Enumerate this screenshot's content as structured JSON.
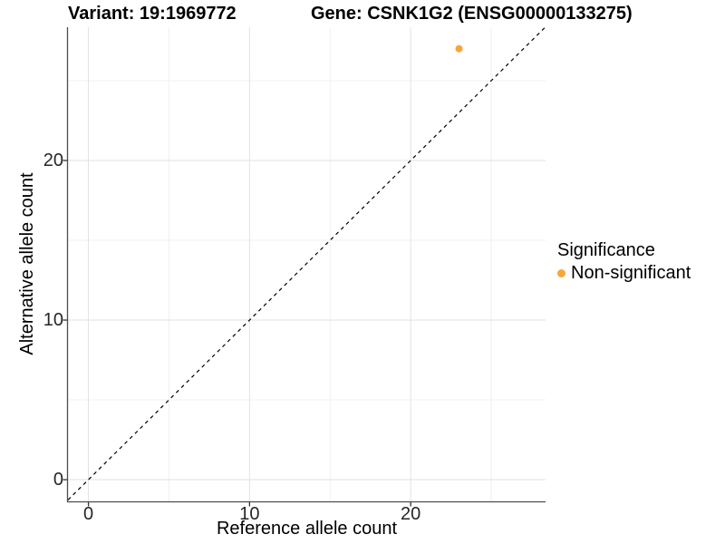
{
  "chart_data": {
    "type": "scatter",
    "title_left": "Variant: 19:1969772",
    "title_right": "Gene: CSNK1G2 (ENSG00000133275)",
    "xlabel": "Reference allele count",
    "ylabel": "Alternative allele count",
    "xlim": [
      -1.27,
      28.37
    ],
    "ylim": [
      -1.36,
      28.35
    ],
    "xticks": [
      0,
      10,
      20
    ],
    "yticks": [
      0,
      10,
      20
    ],
    "xminor": [
      5,
      15,
      25
    ],
    "yminor": [
      5,
      15,
      25
    ],
    "grid": true,
    "identity_line": {
      "slope": 1,
      "intercept": 0,
      "style": "dashed",
      "color": "#000000"
    },
    "series": [
      {
        "name": "Non-significant",
        "color": "#FAA43C",
        "points": [
          {
            "x": 23,
            "y": 27
          }
        ]
      }
    ],
    "legend": {
      "title": "Significance",
      "position": "right",
      "items": [
        {
          "label": "Non-significant",
          "color": "#FAA43C"
        }
      ]
    },
    "theme": {
      "background": "#FFFFFF",
      "grid_major": "#E2E2E2",
      "grid_minor": "#F0F0F0",
      "axis_line": "#4D4D4D",
      "tick_color": "#333333",
      "text_color": "#000000"
    }
  }
}
